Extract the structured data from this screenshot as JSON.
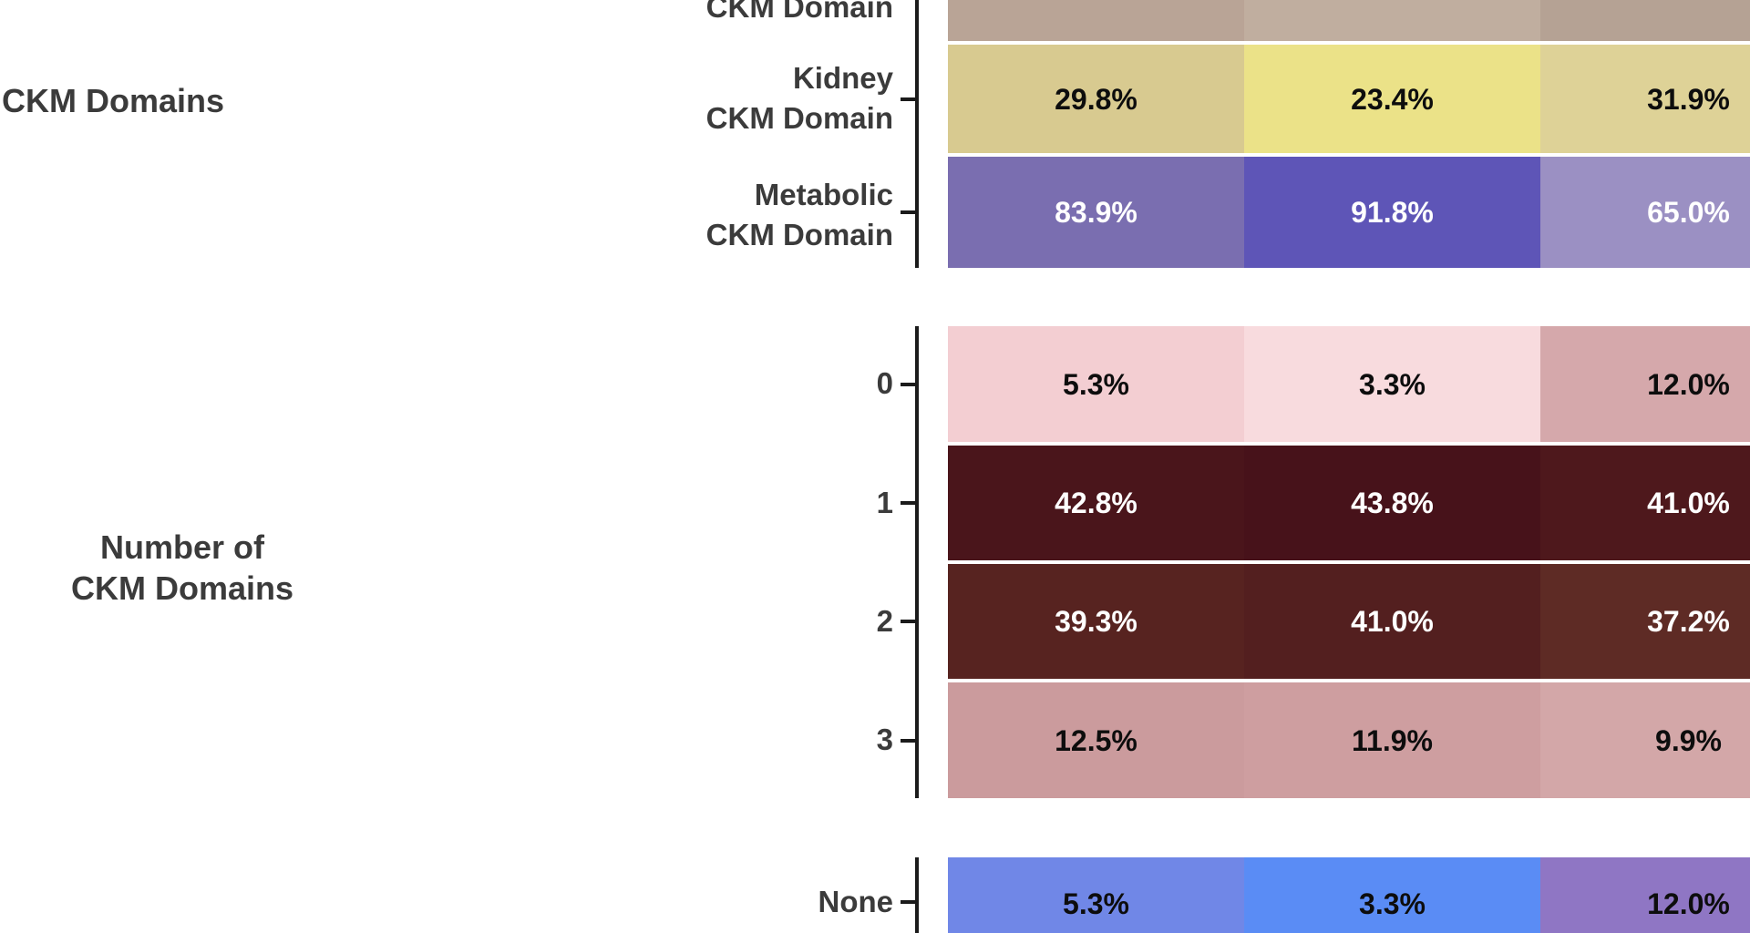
{
  "chart_data": {
    "type": "heatmap",
    "orientation": "rows = categories, columns = study groups (column headers cropped out of view)",
    "n_columns": 3,
    "groups": [
      {
        "label": "CKM Domains",
        "rows": [
          {
            "label_lines": [
              "CKM Domain"
            ],
            "values": [
              "",
              "",
              ""
            ],
            "colors": [
              "#b9a496",
              "#c0ae9f",
              "#b5a294"
            ],
            "text_color": "#0d0d0d"
          },
          {
            "label_lines": [
              "Kidney",
              "CKM Domain"
            ],
            "values": [
              "29.8%",
              "23.4%",
              "31.9%"
            ],
            "colors": [
              "#d8ca90",
              "#ebe288",
              "#ded297"
            ],
            "text_color": "#0d0d0d"
          },
          {
            "label_lines": [
              "Metabolic",
              "CKM Domain"
            ],
            "values": [
              "83.9%",
              "91.8%",
              "65.0%"
            ],
            "colors": [
              "#7a6eb0",
              "#5e55b7",
              "#9b90c3"
            ],
            "text_color": "#ffffff"
          }
        ]
      },
      {
        "label": "Number of\nCKM Domains",
        "rows": [
          {
            "label_lines": [
              "0"
            ],
            "values": [
              "5.3%",
              "3.3%",
              "12.0%"
            ],
            "colors": [
              "#f3ced2",
              "#f8dbde",
              "#d5a8ab"
            ],
            "text_color": "#0d0d0d"
          },
          {
            "label_lines": [
              "1"
            ],
            "values": [
              "42.8%",
              "43.8%",
              "41.0%"
            ],
            "colors": [
              "#4a151b",
              "#47121a",
              "#4e181c"
            ],
            "text_color": "#ffffff"
          },
          {
            "label_lines": [
              "2"
            ],
            "values": [
              "39.3%",
              "41.0%",
              "37.2%"
            ],
            "colors": [
              "#572320",
              "#531f1f",
              "#5e2b25"
            ],
            "text_color": "#ffffff"
          },
          {
            "label_lines": [
              "3"
            ],
            "values": [
              "12.5%",
              "11.9%",
              "9.9%"
            ],
            "colors": [
              "#cb9b9d",
              "#ce9ea0",
              "#d3a7a8"
            ],
            "text_color": "#0d0d0d"
          }
        ]
      },
      {
        "label": "",
        "rows": [
          {
            "label_lines": [
              "None"
            ],
            "values": [
              "5.3%",
              "3.3%",
              "12.0%"
            ],
            "colors": [
              "#7087e7",
              "#5a8cf5",
              "#8f76c4"
            ],
            "text_color": "#0d0d0d"
          }
        ]
      }
    ],
    "axis_color": "#1b1b1b",
    "label_color": "#3b3b3b"
  }
}
